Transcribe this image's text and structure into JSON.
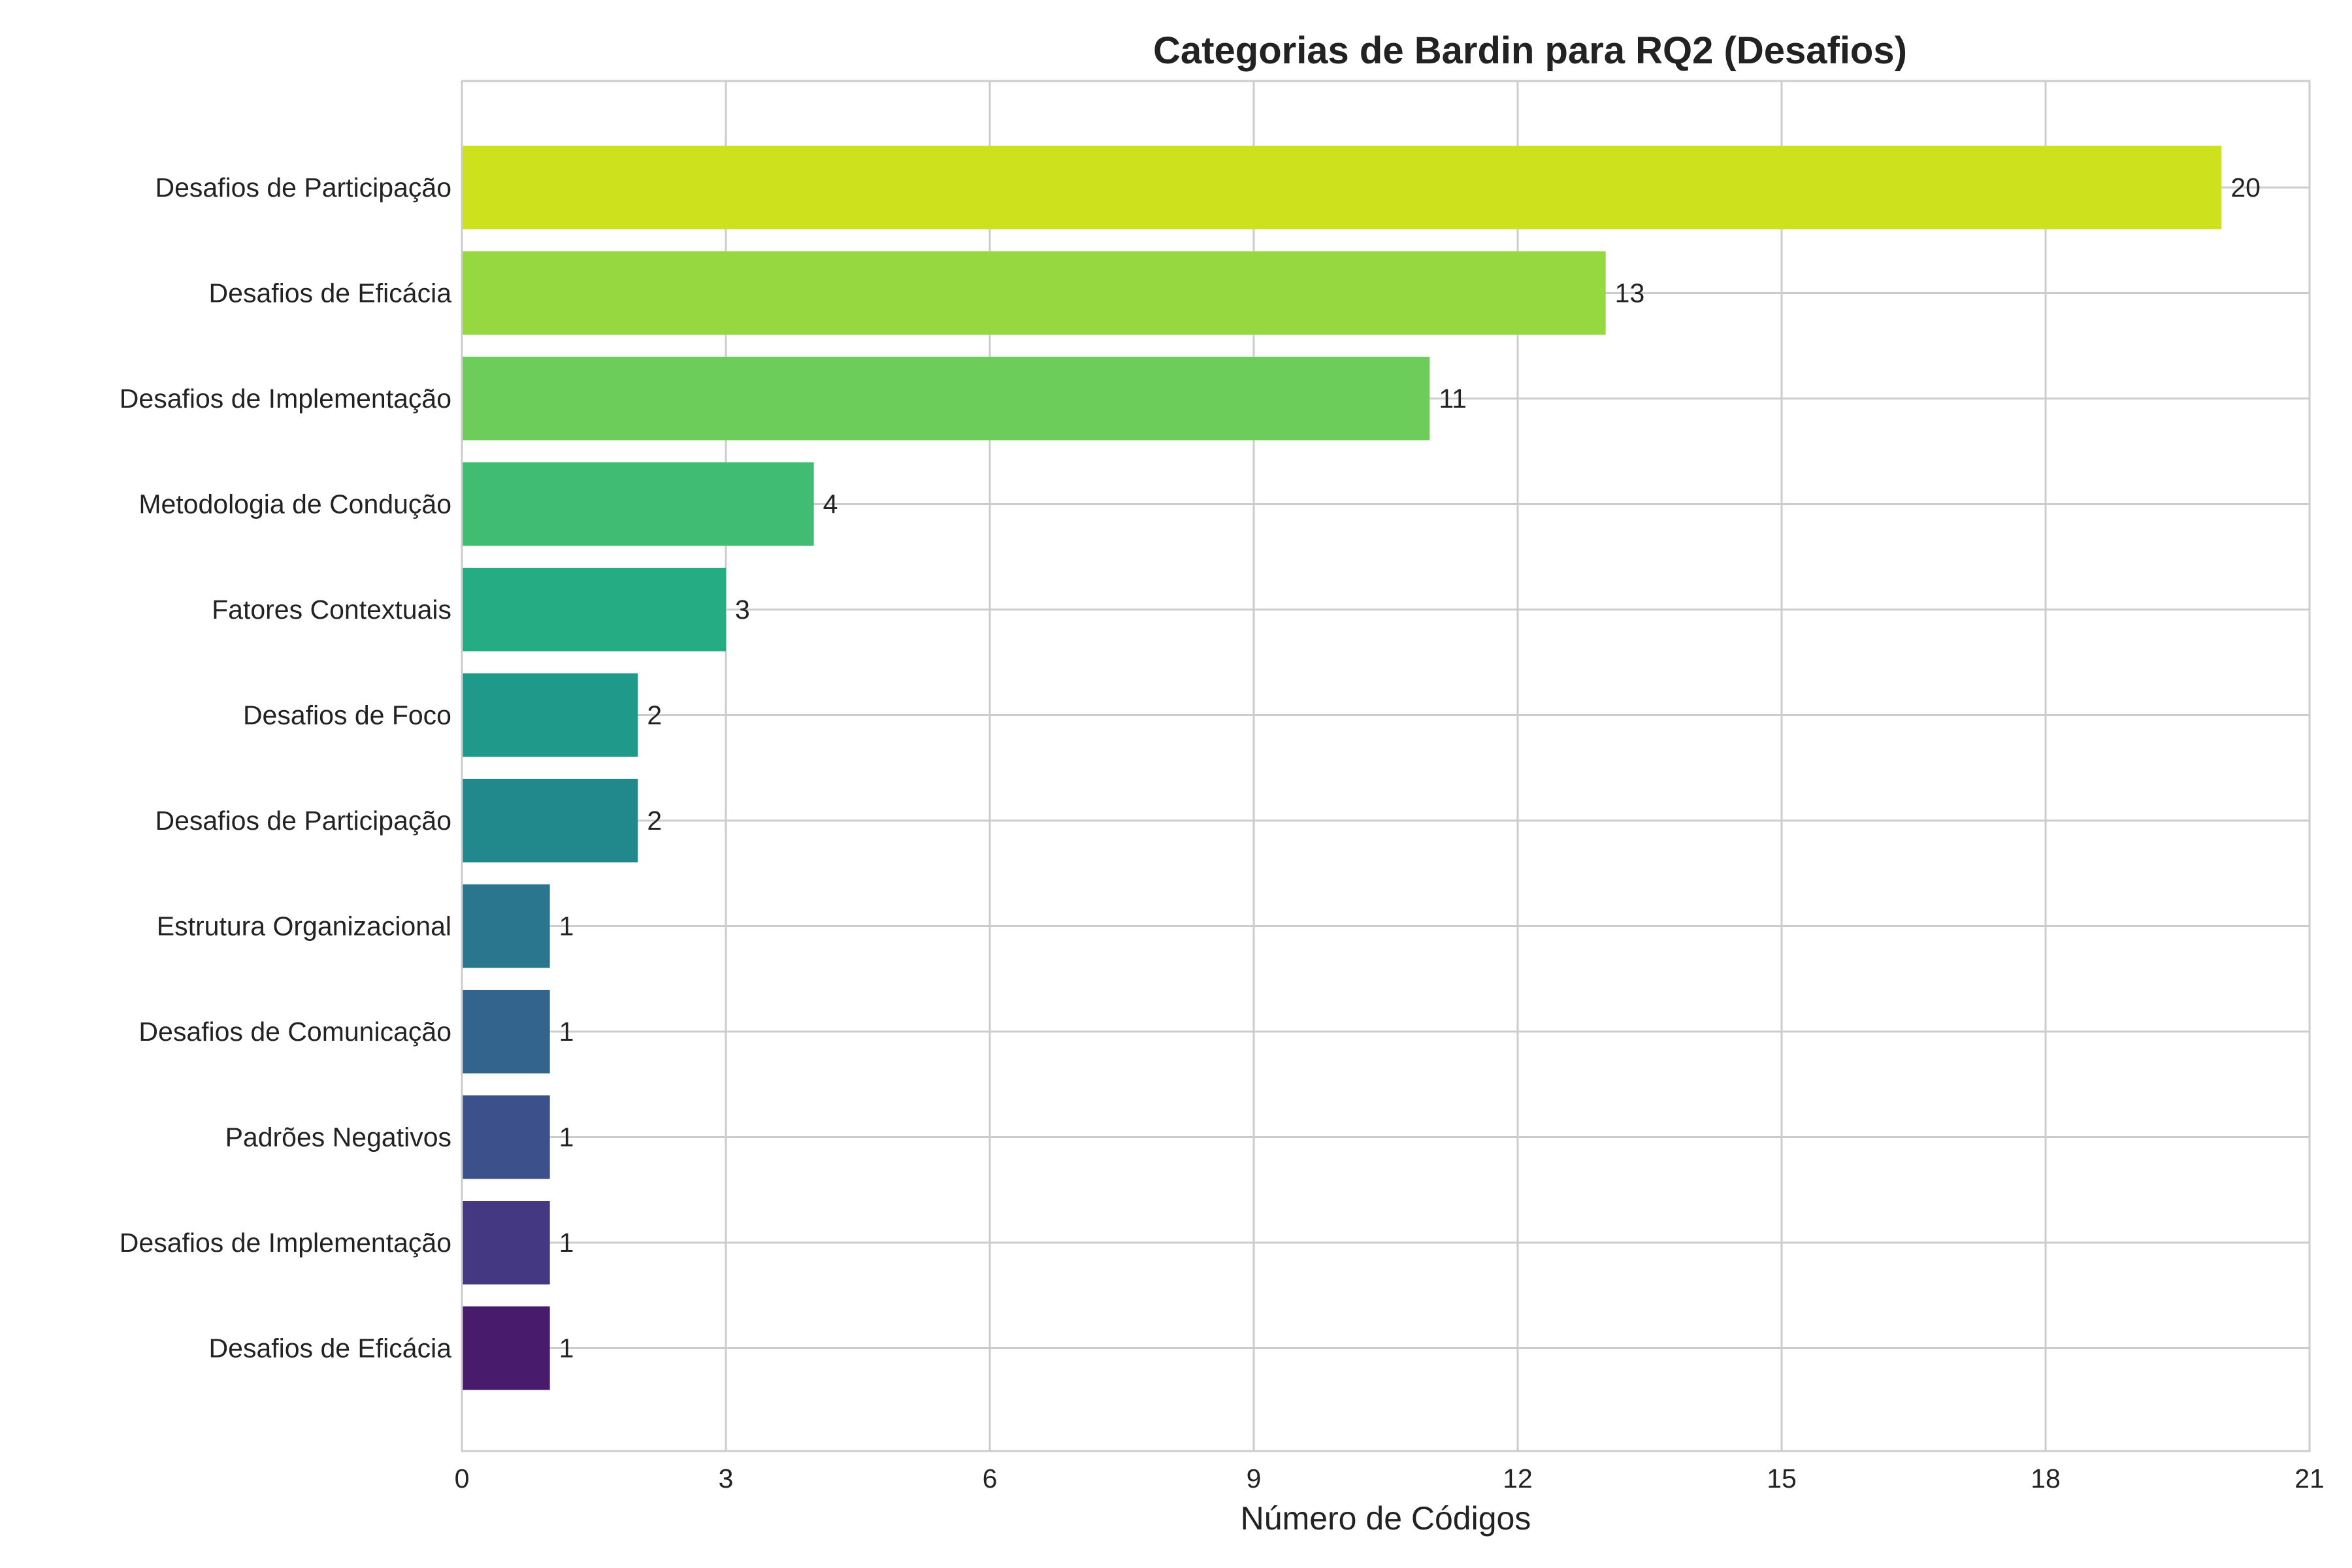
{
  "chart_data": {
    "type": "bar",
    "orientation": "horizontal",
    "title": "Categorias de Bardin para RQ2 (Desafios)",
    "xlabel": "Número de Códigos",
    "ylabel": "",
    "xlim": [
      0,
      21
    ],
    "xticks": [
      0,
      3,
      6,
      9,
      12,
      15,
      18,
      21
    ],
    "grid": true,
    "categories": [
      "Desafios de Participação",
      "Desafios de Eficácia",
      "Desafios de Implementação",
      "Metodologia de Condução",
      "Fatores Contextuais",
      "Desafios de Foco",
      "Desafios de Participação",
      "Estrutura Organizacional",
      "Desafios de Comunicação",
      "Padrões Negativos",
      "Desafios de Implementação",
      "Desafios de Eficácia"
    ],
    "values": [
      20,
      13,
      11,
      4,
      3,
      2,
      2,
      1,
      1,
      1,
      1,
      1
    ],
    "colors": [
      "#cde11d",
      "#95d840",
      "#6ccd5a",
      "#40bd72",
      "#25ac82",
      "#1f9a8a",
      "#21888c",
      "#2a768e",
      "#32648e",
      "#3c508b",
      "#453882",
      "#481b6d"
    ]
  }
}
